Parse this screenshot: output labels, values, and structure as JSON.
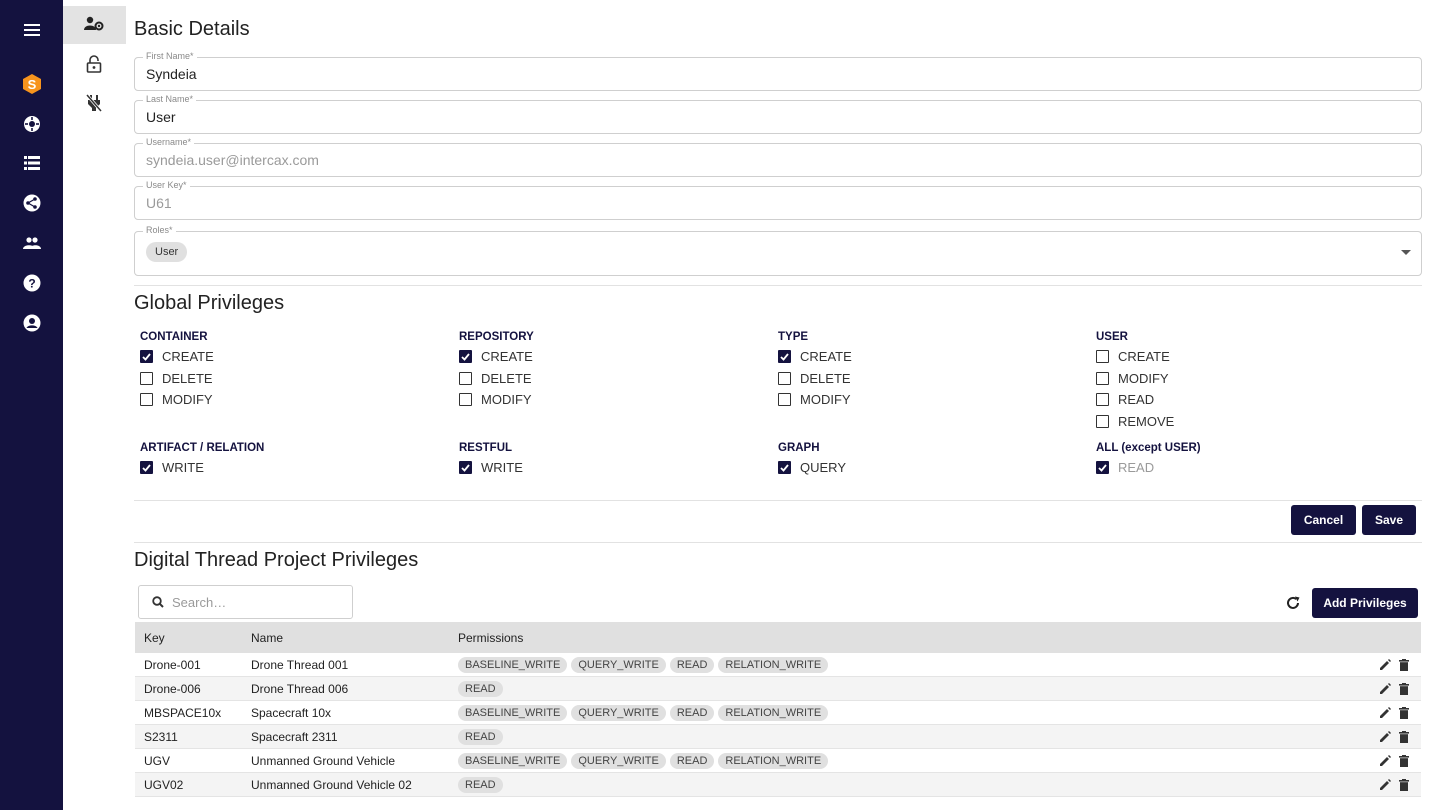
{
  "nav": {
    "icons": [
      "menu-icon",
      "syndeia-logo-icon",
      "compass-icon",
      "list-icon",
      "globe-icon",
      "group-icon",
      "help-icon",
      "account-icon"
    ]
  },
  "subnav": {
    "icons": [
      "user-settings-icon",
      "lock-icon",
      "plug-off-icon"
    ]
  },
  "basic": {
    "title": "Basic Details",
    "first_name": {
      "label": "First Name*",
      "value": "Syndeia"
    },
    "last_name": {
      "label": "Last Name*",
      "value": "User"
    },
    "username": {
      "label": "Username*",
      "value": "syndeia.user@intercax.com"
    },
    "user_key": {
      "label": "User Key*",
      "value": "U61"
    },
    "roles": {
      "label": "Roles*",
      "chip": "User"
    }
  },
  "global": {
    "title": "Global Privileges",
    "groups": [
      {
        "title": "CONTAINER",
        "items": [
          {
            "label": "CREATE",
            "checked": true
          },
          {
            "label": "DELETE",
            "checked": false
          },
          {
            "label": "MODIFY",
            "checked": false
          }
        ]
      },
      {
        "title": "REPOSITORY",
        "items": [
          {
            "label": "CREATE",
            "checked": true
          },
          {
            "label": "DELETE",
            "checked": false
          },
          {
            "label": "MODIFY",
            "checked": false
          }
        ]
      },
      {
        "title": "TYPE",
        "items": [
          {
            "label": "CREATE",
            "checked": true
          },
          {
            "label": "DELETE",
            "checked": false
          },
          {
            "label": "MODIFY",
            "checked": false
          }
        ]
      },
      {
        "title": "USER",
        "items": [
          {
            "label": "CREATE",
            "checked": false
          },
          {
            "label": "MODIFY",
            "checked": false
          },
          {
            "label": "READ",
            "checked": false
          },
          {
            "label": "REMOVE",
            "checked": false
          }
        ]
      },
      {
        "title": "ARTIFACT / RELATION",
        "items": [
          {
            "label": "WRITE",
            "checked": true
          }
        ]
      },
      {
        "title": "RESTFUL",
        "items": [
          {
            "label": "WRITE",
            "checked": true
          }
        ]
      },
      {
        "title": "GRAPH",
        "items": [
          {
            "label": "QUERY",
            "checked": true
          }
        ]
      },
      {
        "title": "ALL (except USER)",
        "items": [
          {
            "label": "READ",
            "checked": true,
            "disabled": true
          }
        ]
      }
    ],
    "cancel_label": "Cancel",
    "save_label": "Save"
  },
  "project": {
    "title": "Digital Thread Project Privileges",
    "search_placeholder": "Search…",
    "add_label": "Add Privileges",
    "columns": [
      "Key",
      "Name",
      "Permissions"
    ],
    "rows": [
      {
        "key": "Drone-001",
        "name": "Drone Thread 001",
        "perms": [
          "BASELINE_WRITE",
          "QUERY_WRITE",
          "READ",
          "RELATION_WRITE"
        ]
      },
      {
        "key": "Drone-006",
        "name": "Drone Thread 006",
        "perms": [
          "READ"
        ]
      },
      {
        "key": "MBSPACE10x",
        "name": "Spacecraft 10x",
        "perms": [
          "BASELINE_WRITE",
          "QUERY_WRITE",
          "READ",
          "RELATION_WRITE"
        ]
      },
      {
        "key": "S2311",
        "name": "Spacecraft 2311",
        "perms": [
          "READ"
        ]
      },
      {
        "key": "UGV",
        "name": "Unmanned Ground Vehicle",
        "perms": [
          "BASELINE_WRITE",
          "QUERY_WRITE",
          "READ",
          "RELATION_WRITE"
        ]
      },
      {
        "key": "UGV02",
        "name": "Unmanned Ground Vehicle 02",
        "perms": [
          "READ"
        ]
      }
    ]
  },
  "colors": {
    "primary": "#14123f",
    "brand": "#f7941d"
  }
}
